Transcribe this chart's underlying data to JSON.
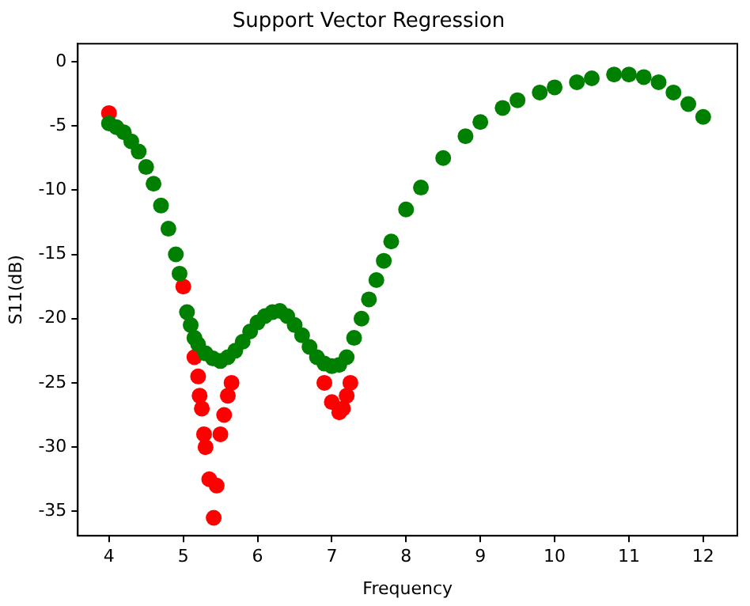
{
  "chart_data": {
    "type": "scatter",
    "title": "Support Vector Regression",
    "xlabel": "Frequency",
    "ylabel": "S11(dB)",
    "xlim": [
      3.58,
      12.46
    ],
    "ylim": [
      -36.9,
      1.4
    ],
    "xticks": [
      4,
      5,
      6,
      7,
      8,
      9,
      10,
      11,
      12
    ],
    "yticks": [
      0,
      -5,
      -10,
      -15,
      -20,
      -25,
      -30,
      -35
    ],
    "grid": false,
    "legend": false,
    "marker": "circle",
    "series": [
      {
        "color": "#ff0000",
        "x": [
          4.0,
          5.0,
          5.15,
          5.2,
          5.22,
          5.25,
          5.28,
          5.3,
          5.35,
          5.41,
          5.45,
          5.5,
          5.55,
          5.6,
          5.65,
          6.9,
          7.0,
          7.1,
          7.15,
          7.2,
          7.25
        ],
        "values": [
          -4.0,
          -17.5,
          -23.0,
          -24.5,
          -26.0,
          -27.0,
          -29.0,
          -30.0,
          -32.5,
          -35.5,
          -33.0,
          -29.0,
          -27.5,
          -26.0,
          -25.0,
          -25.0,
          -26.5,
          -27.3,
          -27.0,
          -26.0,
          -25.0
        ]
      },
      {
        "color": "#008000",
        "x": [
          4.0,
          4.1,
          4.2,
          4.3,
          4.4,
          4.5,
          4.6,
          4.7,
          4.8,
          4.9,
          4.95,
          5.05,
          5.1,
          5.15,
          5.2,
          5.3,
          5.4,
          5.5,
          5.6,
          5.7,
          5.8,
          5.9,
          6.0,
          6.1,
          6.2,
          6.3,
          6.4,
          6.5,
          6.6,
          6.7,
          6.8,
          6.9,
          7.0,
          7.1,
          7.2,
          7.3,
          7.4,
          7.5,
          7.6,
          7.7,
          7.8,
          8.0,
          8.2,
          8.5,
          8.8,
          9.0,
          9.3,
          9.5,
          9.8,
          10.0,
          10.3,
          10.5,
          10.8,
          11.0,
          11.2,
          11.4,
          11.6,
          11.8,
          12.0
        ],
        "values": [
          -4.8,
          -5.1,
          -5.5,
          -6.2,
          -7.0,
          -8.2,
          -9.5,
          -11.2,
          -13.0,
          -15.0,
          -16.5,
          -19.5,
          -20.5,
          -21.5,
          -22.0,
          -22.7,
          -23.1,
          -23.3,
          -23.0,
          -22.5,
          -21.8,
          -21.0,
          -20.3,
          -19.8,
          -19.5,
          -19.4,
          -19.8,
          -20.5,
          -21.3,
          -22.2,
          -23.0,
          -23.5,
          -23.7,
          -23.6,
          -23.0,
          -21.5,
          -20.0,
          -18.5,
          -17.0,
          -15.5,
          -14.0,
          -11.5,
          -9.8,
          -7.5,
          -5.8,
          -4.7,
          -3.6,
          -3.0,
          -2.4,
          -2.0,
          -1.6,
          -1.3,
          -1.0,
          -1.0,
          -1.2,
          -1.6,
          -2.4,
          -3.3,
          -4.3
        ]
      }
    ]
  }
}
